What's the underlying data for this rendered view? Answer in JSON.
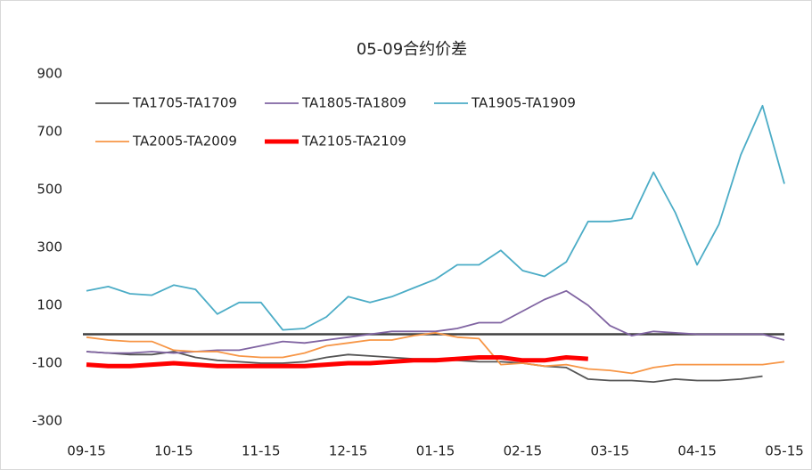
{
  "chart_data": {
    "type": "line",
    "title": "05-09合约价差",
    "categories": [
      "09-15",
      null,
      null,
      null,
      "10-15",
      null,
      null,
      null,
      "11-15",
      null,
      null,
      null,
      "12-15",
      null,
      null,
      null,
      "01-15",
      null,
      null,
      null,
      "02-15",
      null,
      null,
      null,
      "03-15",
      null,
      null,
      null,
      "04-15",
      null,
      null,
      null,
      "05-15"
    ],
    "ylim": [
      -300,
      900
    ],
    "yticks": [
      -300,
      -100,
      100,
      300,
      500,
      700,
      900
    ],
    "series": [
      {
        "name": "TA1705-TA1709",
        "color": "#555555",
        "values": [
          -60,
          -65,
          -70,
          -70,
          -60,
          -80,
          -90,
          -95,
          -100,
          -100,
          -95,
          -80,
          -70,
          -75,
          -80,
          -85,
          -85,
          -90,
          -95,
          -95,
          -100,
          -110,
          -115,
          -155,
          -160,
          -160,
          -165,
          -155,
          -160,
          -160,
          -155,
          -145,
          null
        ]
      },
      {
        "name": "TA1805-TA1809",
        "color": "#8064a2",
        "values": [
          -60,
          -65,
          -65,
          -60,
          -65,
          -60,
          -55,
          -55,
          -40,
          -25,
          -30,
          -20,
          -10,
          0,
          10,
          10,
          10,
          20,
          40,
          40,
          80,
          120,
          150,
          100,
          30,
          -5,
          10,
          5,
          0,
          0,
          0,
          0,
          -20
        ]
      },
      {
        "name": "TA1905-TA1909",
        "color": "#4bacc6",
        "values": [
          150,
          165,
          140,
          135,
          170,
          155,
          70,
          110,
          110,
          15,
          20,
          60,
          130,
          110,
          130,
          160,
          190,
          240,
          240,
          290,
          220,
          200,
          250,
          390,
          390,
          400,
          560,
          420,
          240,
          380,
          620,
          790,
          520
        ]
      },
      {
        "name": "TA2005-TA2009",
        "color": "#f79646",
        "values": [
          -10,
          -20,
          -25,
          -25,
          -55,
          -60,
          -60,
          -75,
          -80,
          -80,
          -65,
          -40,
          -30,
          -20,
          -20,
          -5,
          5,
          -10,
          -15,
          -105,
          -100,
          -110,
          -105,
          -120,
          -125,
          -135,
          -115,
          -105,
          -105,
          -105,
          -105,
          -105,
          -95
        ]
      },
      {
        "name": "TA2105-TA2109",
        "color": "#ff0000",
        "values": [
          -105,
          -110,
          -110,
          -105,
          -100,
          -105,
          -110,
          -110,
          -110,
          -110,
          -110,
          -105,
          -100,
          -100,
          -95,
          -90,
          -90,
          -85,
          -80,
          -80,
          -90,
          -90,
          -80,
          -85,
          null,
          null,
          null,
          null,
          null,
          null,
          null,
          null,
          null
        ]
      }
    ]
  }
}
